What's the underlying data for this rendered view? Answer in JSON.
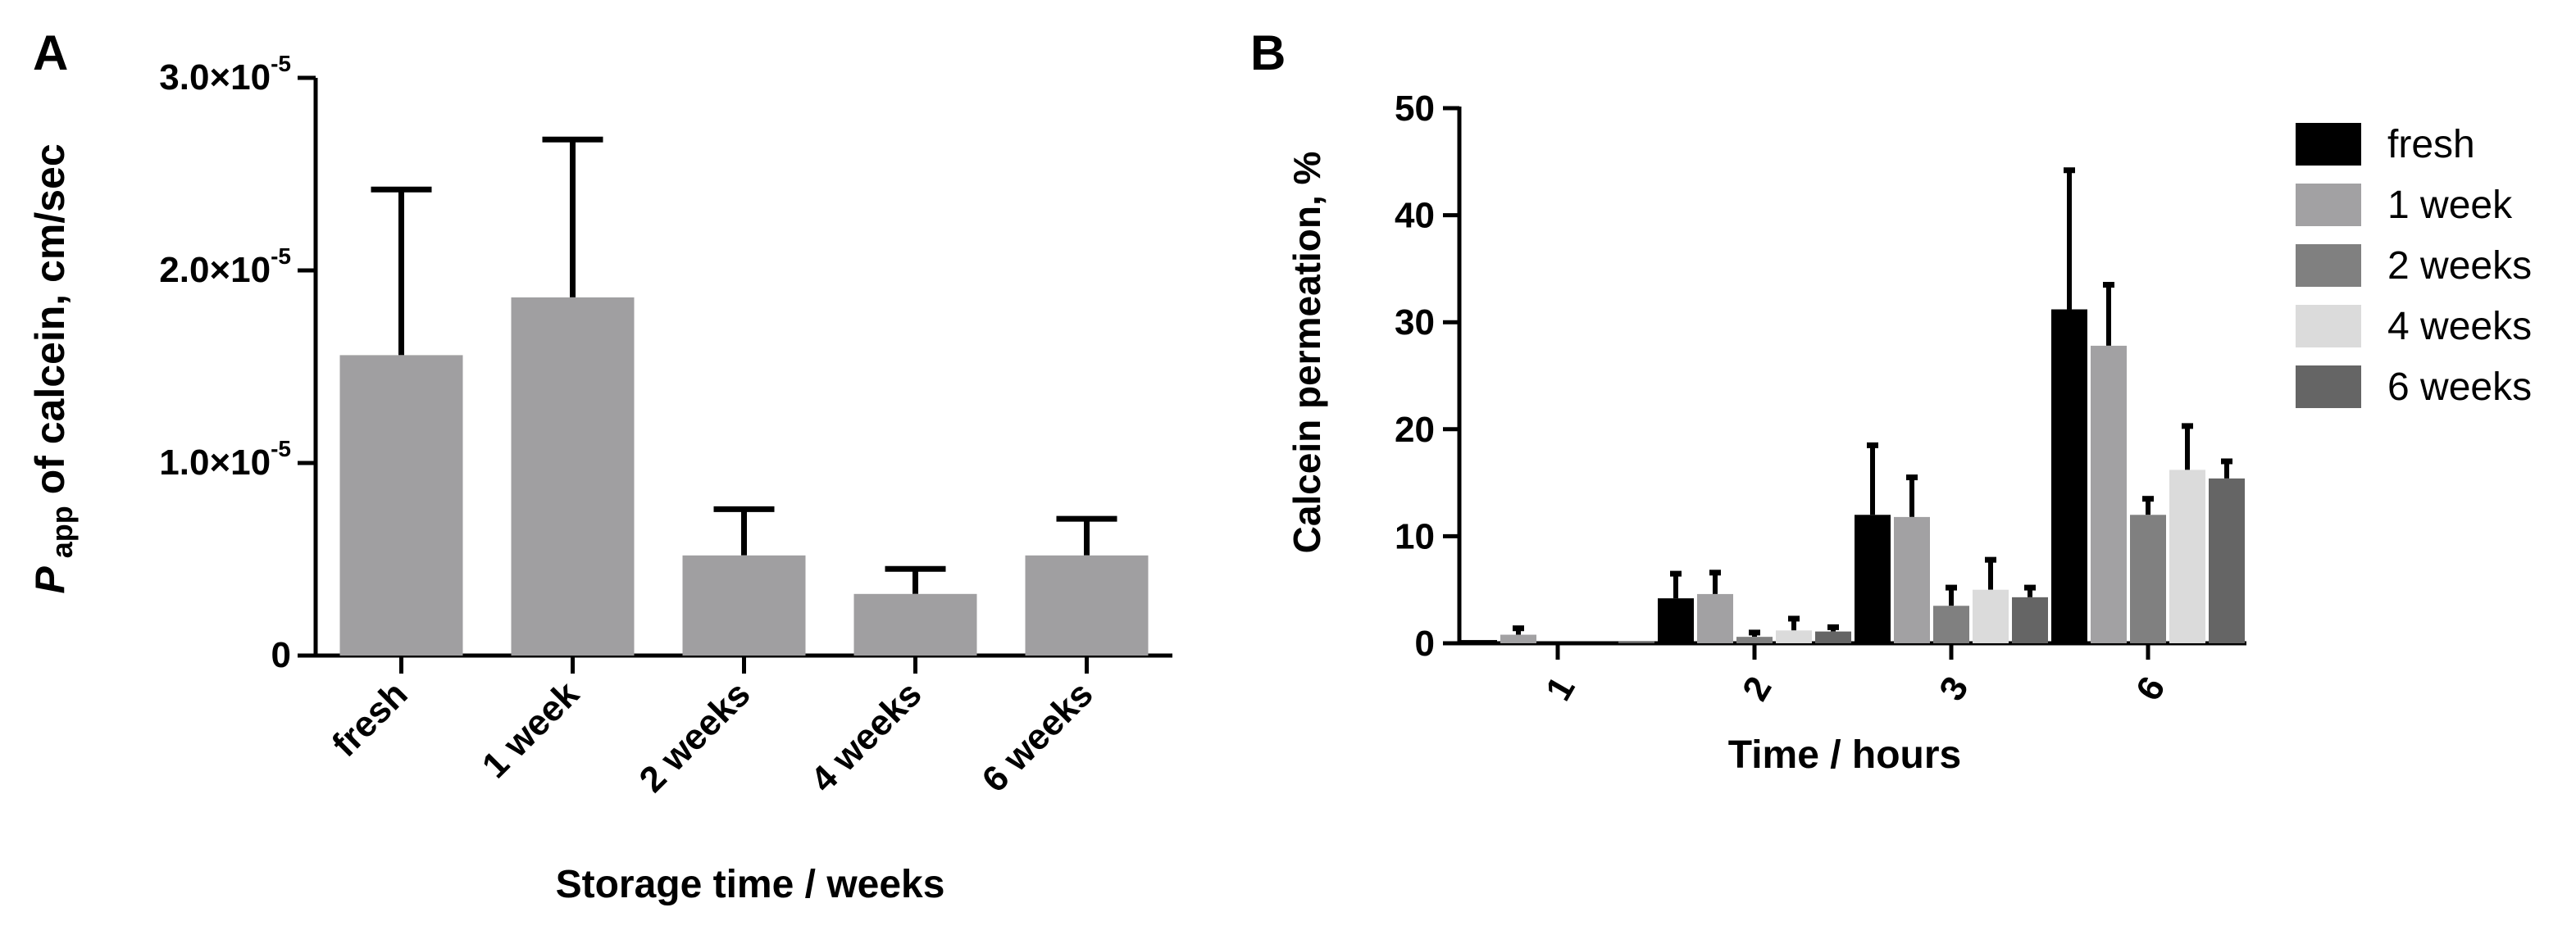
{
  "panels": {
    "a": {
      "letter": "A"
    },
    "b": {
      "letter": "B"
    }
  },
  "colors": {
    "axis": "#000000",
    "panel_a_bar": "#a09fa1",
    "fresh": "#000000",
    "1 week": "#a2a1a3",
    "2 weeks": "#808080",
    "4 weeks": "#dbdbdb",
    "6 weeks": "#656565"
  },
  "chart_data": [
    {
      "id": "panel-a",
      "type": "bar",
      "title": "",
      "xlabel": "Storage time / weeks",
      "ylabel_main": "P",
      "ylabel_sub": "app",
      "ylabel_rest": " of calcein, cm/sec",
      "categories": [
        "fresh",
        "1 week",
        "2 weeks",
        "4 weeks",
        "6 weeks"
      ],
      "values": [
        1.56e-05,
        1.86e-05,
        5.2e-06,
        3.2e-06,
        5.2e-06
      ],
      "errors_upper": [
        2.42e-05,
        2.68e-05,
        7.6e-06,
        4.5e-06,
        7.1e-06
      ],
      "ylim": [
        0,
        3e-05
      ],
      "yticks": [
        {
          "value": 0,
          "mantissa": "0",
          "exp": ""
        },
        {
          "value": 1e-05,
          "mantissa": "1.0×10",
          "exp": "-5"
        },
        {
          "value": 2e-05,
          "mantissa": "2.0×10",
          "exp": "-5"
        },
        {
          "value": 3e-05,
          "mantissa": "3.0×10",
          "exp": "-5"
        }
      ]
    },
    {
      "id": "panel-b",
      "type": "bar",
      "title": "",
      "xlabel": "Time / hours",
      "ylabel": "Calcein permeation, %",
      "categories": [
        "1",
        "2",
        "3",
        "6"
      ],
      "ylim": [
        0,
        50
      ],
      "yticks": [
        0,
        10,
        20,
        30,
        40,
        50
      ],
      "legend_position": "right",
      "series": [
        {
          "name": "fresh",
          "values": [
            0.3,
            4.2,
            12.0,
            31.2
          ],
          "errors_upper": [
            0.3,
            6.5,
            18.5,
            44.2
          ]
        },
        {
          "name": "1 week",
          "values": [
            0.8,
            4.6,
            11.8,
            27.8
          ],
          "errors_upper": [
            1.4,
            6.6,
            15.5,
            33.5
          ]
        },
        {
          "name": "2 weeks",
          "values": [
            0.0,
            0.6,
            3.5,
            12.0
          ],
          "errors_upper": [
            0.0,
            1.0,
            5.2,
            13.5
          ]
        },
        {
          "name": "4 weeks",
          "values": [
            0.0,
            1.2,
            5.0,
            16.2
          ],
          "errors_upper": [
            0.0,
            2.3,
            7.8,
            20.3
          ]
        },
        {
          "name": "6 weeks",
          "values": [
            0.2,
            1.1,
            4.3,
            15.4
          ],
          "errors_upper": [
            0.2,
            1.5,
            5.2,
            17.0
          ]
        }
      ]
    }
  ]
}
